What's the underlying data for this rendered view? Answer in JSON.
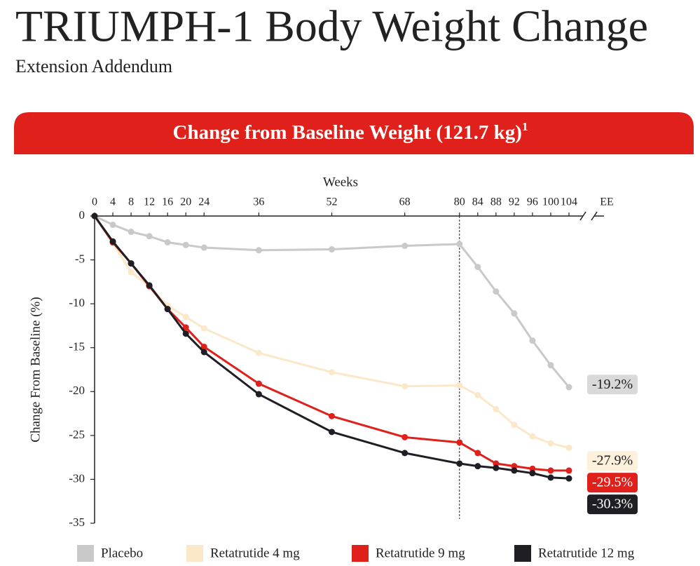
{
  "chart_data": {
    "type": "line",
    "title": "TRIUMPH-1 Body Weight Change",
    "subtitle": "Extension Addendum",
    "banner": "Change from Baseline Weight (121.7 kg)",
    "banner_note": "1",
    "x_label": "Weeks",
    "y_label": "Change From Baseline (%)",
    "x": [
      0,
      4,
      8,
      12,
      16,
      20,
      24,
      36,
      52,
      68,
      80,
      84,
      88,
      92,
      96,
      100,
      104
    ],
    "xlim": [
      0,
      104
    ],
    "xticks": [
      0,
      4,
      8,
      12,
      16,
      20,
      24,
      36,
      52,
      68,
      80,
      84,
      88,
      92,
      96,
      100,
      104
    ],
    "x_end_label": "EE",
    "ylim": [
      -35,
      0
    ],
    "yticks": [
      0,
      -5,
      -10,
      -15,
      -20,
      -25,
      -30,
      -35
    ],
    "vline": 80,
    "series": [
      {
        "name": "Placebo",
        "color": "#c9c9c9",
        "label_bg": "#d9d9d9",
        "label_color": "#222222",
        "values": [
          0,
          -1.0,
          -1.8,
          -2.3,
          -3.0,
          -3.3,
          -3.6,
          -3.9,
          -3.8,
          -3.4,
          -3.2,
          -5.8,
          -8.6,
          -11.1,
          -14.2,
          -17.0,
          -19.5
        ],
        "ee_value": -19.2,
        "ee_value_label": "-19.2%"
      },
      {
        "name": "Retatrutide 4 mg",
        "color": "#fbe8c8",
        "label_bg": "#fdf1dc",
        "label_color": "#222222",
        "values": [
          0,
          -3.1,
          -6.4,
          -8.0,
          -10.2,
          -11.5,
          -12.8,
          -15.6,
          -17.8,
          -19.4,
          -19.3,
          -20.4,
          -22.0,
          -23.8,
          -25.1,
          -25.9,
          -26.4
        ],
        "ee_value": -27.9,
        "ee_value_label": "-27.9%"
      },
      {
        "name": "Retatrutide 9 mg",
        "color": "#e0201b",
        "label_bg": "#e0201b",
        "label_color": "#ffffff",
        "values": [
          0,
          -3.0,
          -5.4,
          -8.0,
          -10.6,
          -12.7,
          -14.9,
          -19.1,
          -22.8,
          -25.2,
          -25.8,
          -27.0,
          -28.2,
          -28.5,
          -28.8,
          -29.0,
          -29.0
        ],
        "ee_value": -29.5,
        "ee_value_label": "-29.5%"
      },
      {
        "name": "Retatrutide 12 mg",
        "color": "#1e1e24",
        "label_bg": "#1e1e24",
        "label_color": "#ffffff",
        "values": [
          0,
          -2.9,
          -5.4,
          -7.9,
          -10.6,
          -13.4,
          -15.5,
          -20.3,
          -24.6,
          -27.0,
          -28.2,
          -28.5,
          -28.7,
          -29.0,
          -29.3,
          -29.8,
          -29.9
        ],
        "ee_value": -30.3,
        "ee_value_label": "-30.3%"
      }
    ]
  }
}
